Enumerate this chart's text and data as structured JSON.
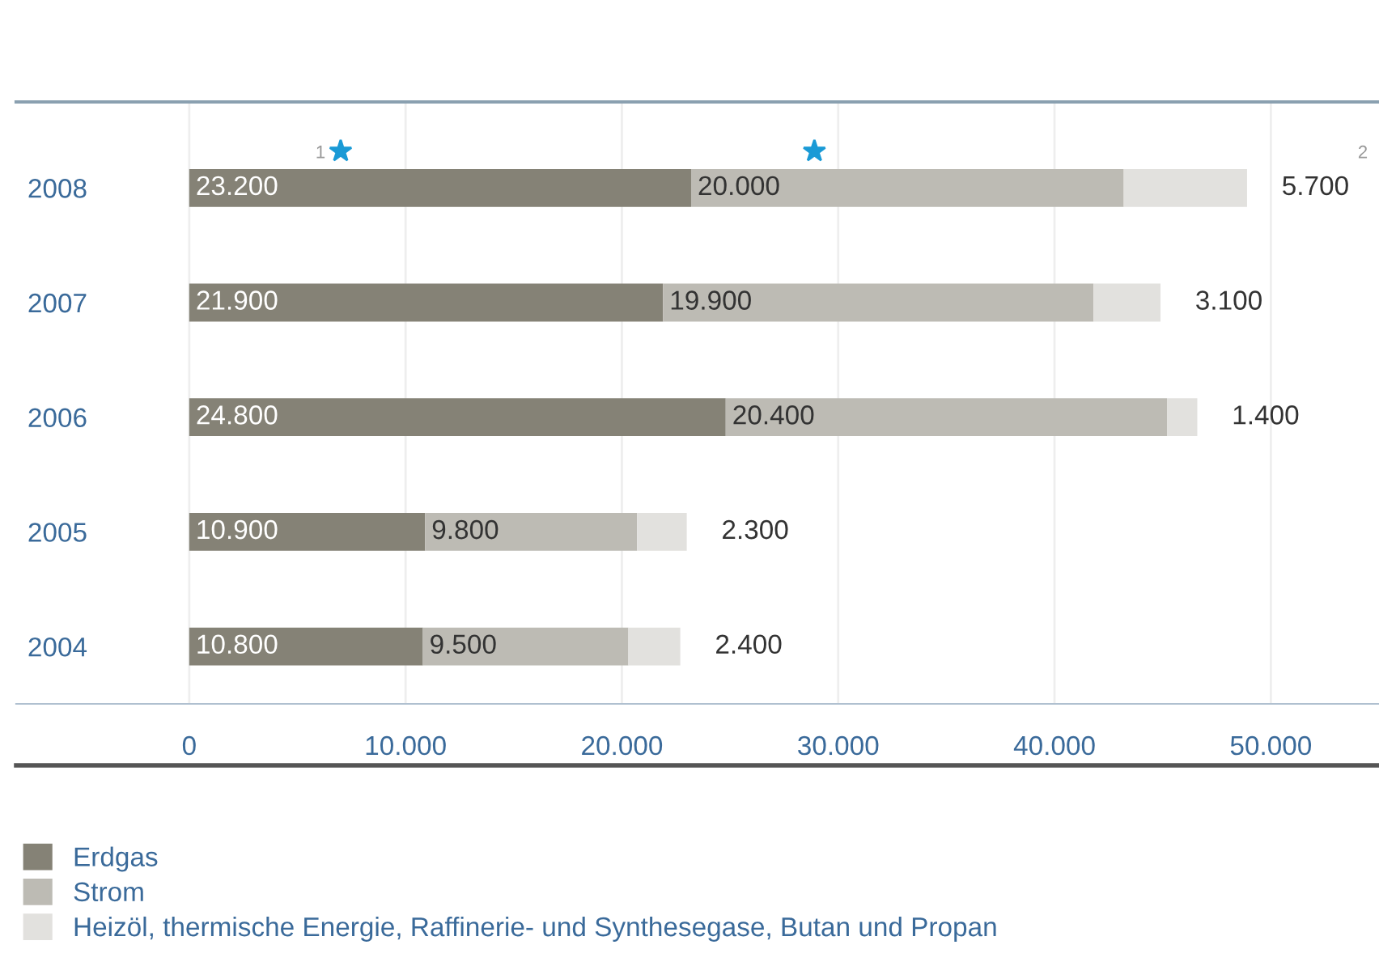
{
  "chart_data": {
    "type": "bar",
    "orientation": "horizontal",
    "stacked": true,
    "categories": [
      "2008",
      "2007",
      "2006",
      "2005",
      "2004"
    ],
    "series": [
      {
        "name": "Erdgas",
        "color": "#858276",
        "values": [
          23200,
          21900,
          24800,
          10900,
          10800
        ],
        "value_labels": [
          "23.200",
          "21.900",
          "24.800",
          "10.900",
          "10.800"
        ]
      },
      {
        "name": "Strom",
        "color": "#bdbbb4",
        "values": [
          20000,
          19900,
          20400,
          9800,
          9500
        ],
        "value_labels": [
          "20.000",
          "19.900",
          "20.400",
          "9.800",
          "9.500"
        ]
      },
      {
        "name": "Heizöl, thermische Energie, Raffinerie- und Synthesegase, Butan und Propan",
        "color": "#e2e1de",
        "values": [
          5700,
          3100,
          1400,
          2300,
          2400
        ],
        "value_labels": [
          "5.700",
          "3.100",
          "1.400",
          "2.300",
          "2.400"
        ]
      }
    ],
    "xlim": [
      -8000,
      55000
    ],
    "xticks": [
      0,
      {
        "value": 10000,
        "label": "10.000"
      },
      {
        "value": 20000,
        "label": "20.000"
      },
      {
        "value": 30000,
        "label": "30.000"
      },
      {
        "value": 40000,
        "label": "40.000"
      },
      {
        "value": 50000,
        "label": "50.000"
      }
    ],
    "grid": "x",
    "legend": "bottom",
    "annotations": [
      "1",
      "2"
    ]
  }
}
